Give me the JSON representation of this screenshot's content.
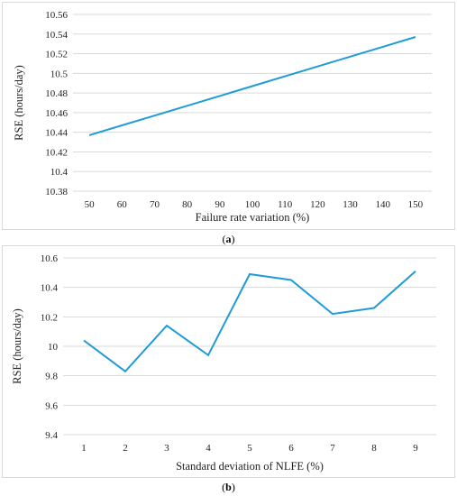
{
  "chart_data": [
    {
      "type": "line",
      "caption_letter": "a",
      "xlabel": "Failure rate variation (%)",
      "ylabel": "RSE (hours/day)",
      "categories": [
        "50",
        "60",
        "70",
        "80",
        "90",
        "100",
        "110",
        "120",
        "130",
        "140",
        "150"
      ],
      "yticks": [
        "10.38",
        "10.4",
        "10.42",
        "10.44",
        "10.46",
        "10.48",
        "10.5",
        "10.52",
        "10.54",
        "10.56"
      ],
      "ylim": [
        10.38,
        10.56
      ],
      "series": [
        {
          "values": [
            10.437,
            10.447,
            10.457,
            10.467,
            10.477,
            10.487,
            10.497,
            10.507,
            10.517,
            10.527,
            10.537
          ]
        }
      ],
      "grid": true,
      "color": "#1f9bd7"
    },
    {
      "type": "line",
      "caption_letter": "b",
      "xlabel": "Standard deviation of NLFE (%)",
      "ylabel": "RSE (hours/day)",
      "categories": [
        "1",
        "2",
        "3",
        "4",
        "5",
        "6",
        "7",
        "8",
        "9"
      ],
      "yticks": [
        "9.4",
        "9.6",
        "9.8",
        "10",
        "10.2",
        "10.4",
        "10.6"
      ],
      "ylim": [
        9.4,
        10.6
      ],
      "series": [
        {
          "values": [
            10.04,
            9.83,
            10.14,
            9.94,
            10.49,
            10.45,
            10.22,
            10.26,
            10.51
          ]
        }
      ],
      "grid": true,
      "color": "#1f9bd7"
    }
  ]
}
